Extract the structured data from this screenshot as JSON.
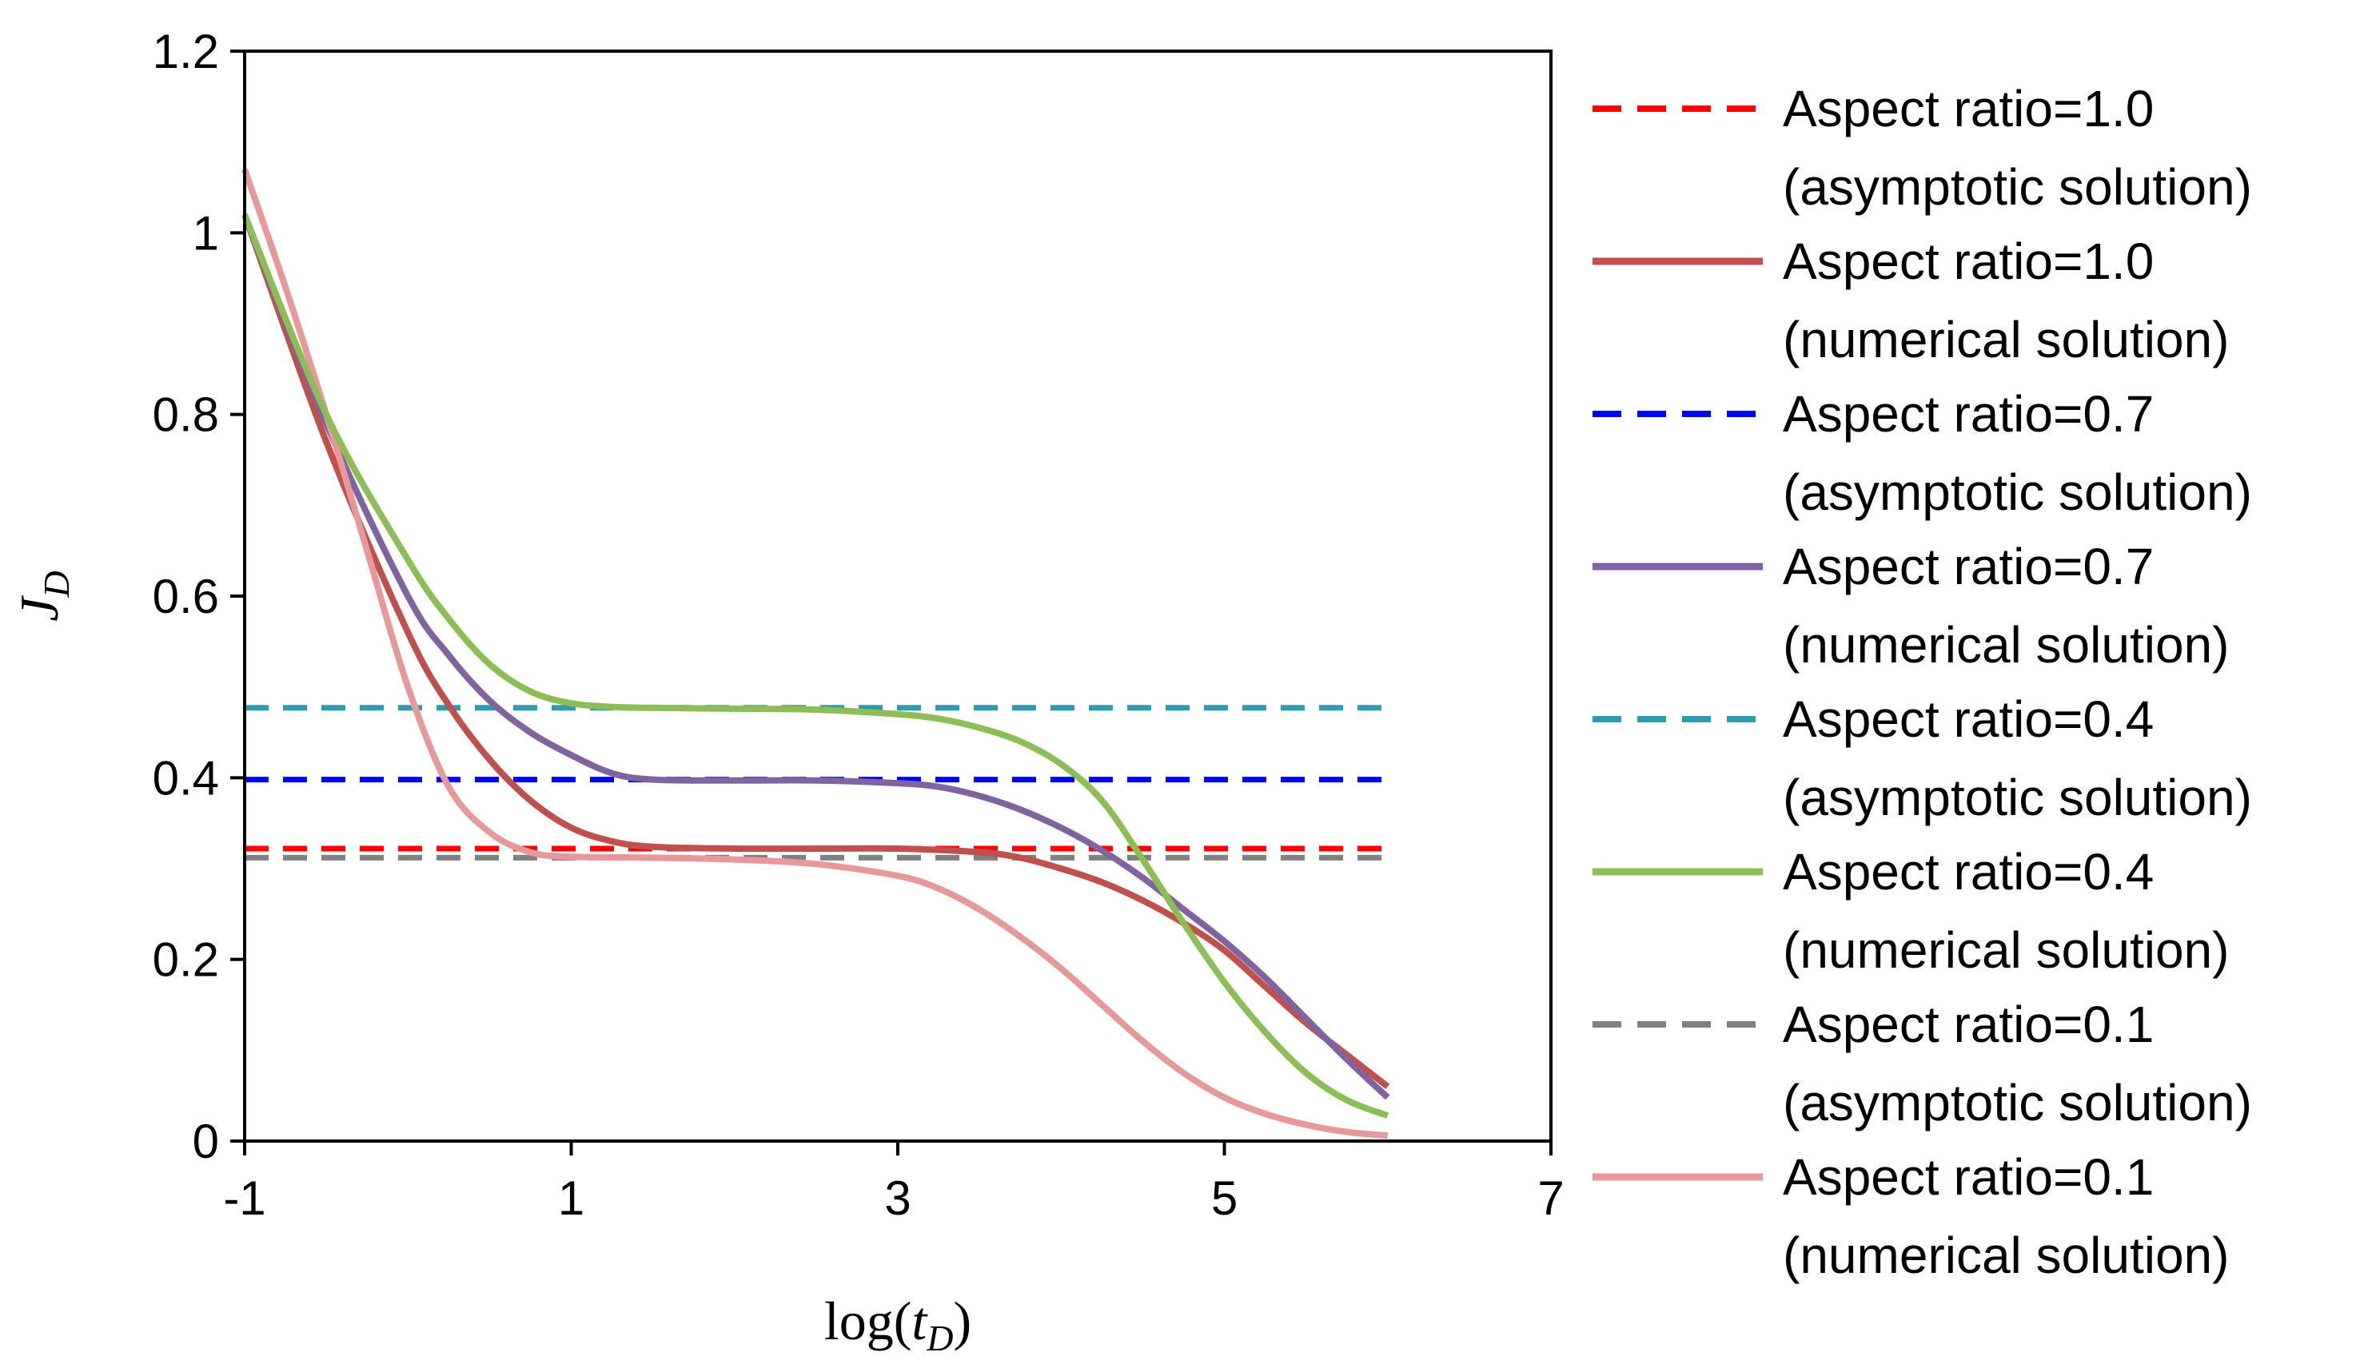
{
  "chart_data": {
    "type": "line",
    "title": "",
    "xlabel": {
      "prefix": "log(",
      "var": "t",
      "sub": "D",
      "suffix": ")"
    },
    "ylabel": {
      "var": "J",
      "sub": "D"
    },
    "xlim": [
      -1,
      7
    ],
    "ylim": [
      0,
      1.2
    ],
    "x_ticks": [
      -1,
      1,
      3,
      5,
      7
    ],
    "x_tick_labels": [
      "-1",
      "1",
      "3",
      "5",
      "7"
    ],
    "y_ticks": [
      0,
      0.2,
      0.4,
      0.6,
      0.8,
      1.0,
      1.2
    ],
    "y_tick_labels": [
      "0",
      "0.2",
      "0.4",
      "0.6",
      "0.8",
      "1",
      "1.2"
    ],
    "grid": false,
    "legend_position": "right",
    "series": [
      {
        "id": "ar10-asym",
        "name": "Aspect ratio=1.0",
        "note": "(asymptotic solution)",
        "color": "#FF0000",
        "style": "dashed",
        "x": [
          -1,
          6
        ],
        "y": [
          0.322,
          0.322
        ]
      },
      {
        "id": "ar10-num",
        "name": "Aspect ratio=1.0",
        "note": "(numerical solution)",
        "color": "#C0504D",
        "style": "solid",
        "x": [
          -1,
          -0.5,
          0,
          0.25,
          0.5,
          0.75,
          1,
          1.25,
          1.5,
          2,
          2.5,
          3,
          3.5,
          3.75,
          4,
          4.25,
          4.5,
          4.75,
          5,
          5.25,
          5.5,
          5.75,
          6
        ],
        "y": [
          1.02,
          0.77,
          0.56,
          0.48,
          0.42,
          0.375,
          0.345,
          0.33,
          0.324,
          0.322,
          0.322,
          0.322,
          0.318,
          0.312,
          0.3,
          0.285,
          0.265,
          0.24,
          0.21,
          0.17,
          0.13,
          0.095,
          0.06
        ]
      },
      {
        "id": "ar07-asym",
        "name": "Aspect ratio=0.7",
        "note": "(asymptotic solution)",
        "color": "#0000FF",
        "style": "dashed",
        "x": [
          -1,
          6
        ],
        "y": [
          0.398,
          0.398
        ]
      },
      {
        "id": "ar07-num",
        "name": "Aspect ratio=0.7",
        "note": "(numerical solution)",
        "color": "#8064A2",
        "style": "solid",
        "x": [
          -1,
          -0.5,
          0,
          0.25,
          0.5,
          0.75,
          1,
          1.25,
          1.5,
          2,
          2.5,
          3,
          3.25,
          3.5,
          3.75,
          4,
          4.25,
          4.5,
          4.75,
          5,
          5.25,
          5.5,
          5.75,
          6
        ],
        "y": [
          1.02,
          0.79,
          0.6,
          0.535,
          0.485,
          0.45,
          0.425,
          0.405,
          0.398,
          0.397,
          0.397,
          0.394,
          0.39,
          0.38,
          0.365,
          0.345,
          0.32,
          0.29,
          0.255,
          0.22,
          0.18,
          0.135,
          0.09,
          0.048
        ]
      },
      {
        "id": "ar04-asym",
        "name": "Aspect ratio=0.4",
        "note": "(asymptotic solution)",
        "color": "#2E9BAE",
        "style": "dashed",
        "x": [
          -1,
          6
        ],
        "y": [
          0.477,
          0.477
        ]
      },
      {
        "id": "ar04-num",
        "name": "Aspect ratio=0.4",
        "note": "(numerical solution)",
        "color": "#8CBE55",
        "style": "solid",
        "x": [
          -1,
          -0.5,
          0,
          0.25,
          0.5,
          0.75,
          1,
          1.25,
          1.5,
          2,
          2.5,
          3,
          3.25,
          3.5,
          3.75,
          4,
          4.25,
          4.5,
          4.75,
          5,
          5.25,
          5.5,
          5.75,
          6
        ],
        "y": [
          1.02,
          0.8,
          0.64,
          0.575,
          0.525,
          0.495,
          0.482,
          0.478,
          0.477,
          0.476,
          0.475,
          0.47,
          0.465,
          0.455,
          0.44,
          0.415,
          0.375,
          0.31,
          0.24,
          0.175,
          0.12,
          0.075,
          0.045,
          0.028
        ]
      },
      {
        "id": "ar01-asym",
        "name": "Aspect ratio=0.1",
        "note": "(asymptotic solution)",
        "color": "#808080",
        "style": "dashed",
        "x": [
          -1,
          6
        ],
        "y": [
          0.312,
          0.312
        ]
      },
      {
        "id": "ar01-num",
        "name": "Aspect ratio=0.1",
        "note": "(numerical solution)",
        "color": "#E6989A",
        "style": "solid",
        "x": [
          -1,
          -0.75,
          -0.5,
          -0.25,
          0,
          0.25,
          0.5,
          0.75,
          1,
          1.5,
          2,
          2.5,
          3,
          3.25,
          3.5,
          3.75,
          4,
          4.25,
          4.5,
          4.75,
          5,
          5.25,
          5.5,
          5.75,
          6
        ],
        "y": [
          1.07,
          0.94,
          0.8,
          0.65,
          0.5,
          0.39,
          0.34,
          0.318,
          0.313,
          0.312,
          0.31,
          0.305,
          0.292,
          0.278,
          0.255,
          0.225,
          0.19,
          0.15,
          0.11,
          0.075,
          0.048,
          0.03,
          0.018,
          0.01,
          0.006
        ]
      }
    ]
  }
}
